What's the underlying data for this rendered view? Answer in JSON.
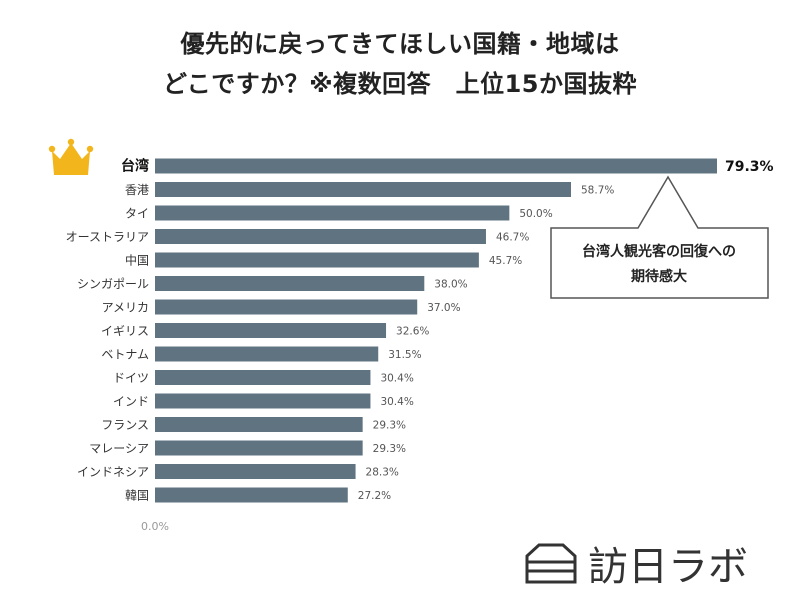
{
  "title": {
    "line1": "優先的に戻ってきてほしい国籍・地域は",
    "line2": "どこですか？※複数回答　上位15か国抜粋"
  },
  "callout": {
    "line1": "台湾人観光客の回復への",
    "line2": "期待感大"
  },
  "logo": {
    "text": "訪日ラボ"
  },
  "colors": {
    "bar": "#5f7480",
    "crown": "#f2b51c",
    "callout_border": "#555555"
  },
  "chart_data": {
    "type": "bar",
    "orientation": "horizontal",
    "title": "優先的に戻ってきてほしい国籍・地域は どこですか？※複数回答　上位15か国抜粋",
    "categories": [
      "台湾",
      "香港",
      "タイ",
      "オーストラリア",
      "中国",
      "シンガポール",
      "アメリカ",
      "イギリス",
      "ベトナム",
      "ドイツ",
      "インド",
      "フランス",
      "マレーシア",
      "インドネシア",
      "韓国"
    ],
    "values": [
      79.3,
      58.7,
      50.0,
      46.7,
      45.7,
      38.0,
      37.0,
      32.6,
      31.5,
      30.4,
      30.4,
      29.3,
      29.3,
      28.3,
      27.2
    ],
    "value_labels": [
      "79.3%",
      "58.7%",
      "50.0%",
      "46.7%",
      "45.7%",
      "38.0%",
      "37.0%",
      "32.6%",
      "31.5%",
      "30.4%",
      "30.4%",
      "29.3%",
      "29.3%",
      "28.3%",
      "27.2%"
    ],
    "axis_min_label": "0.0%",
    "xlim": [
      0,
      79.3
    ],
    "highlight_index": 0,
    "xlabel": "",
    "ylabel": ""
  }
}
